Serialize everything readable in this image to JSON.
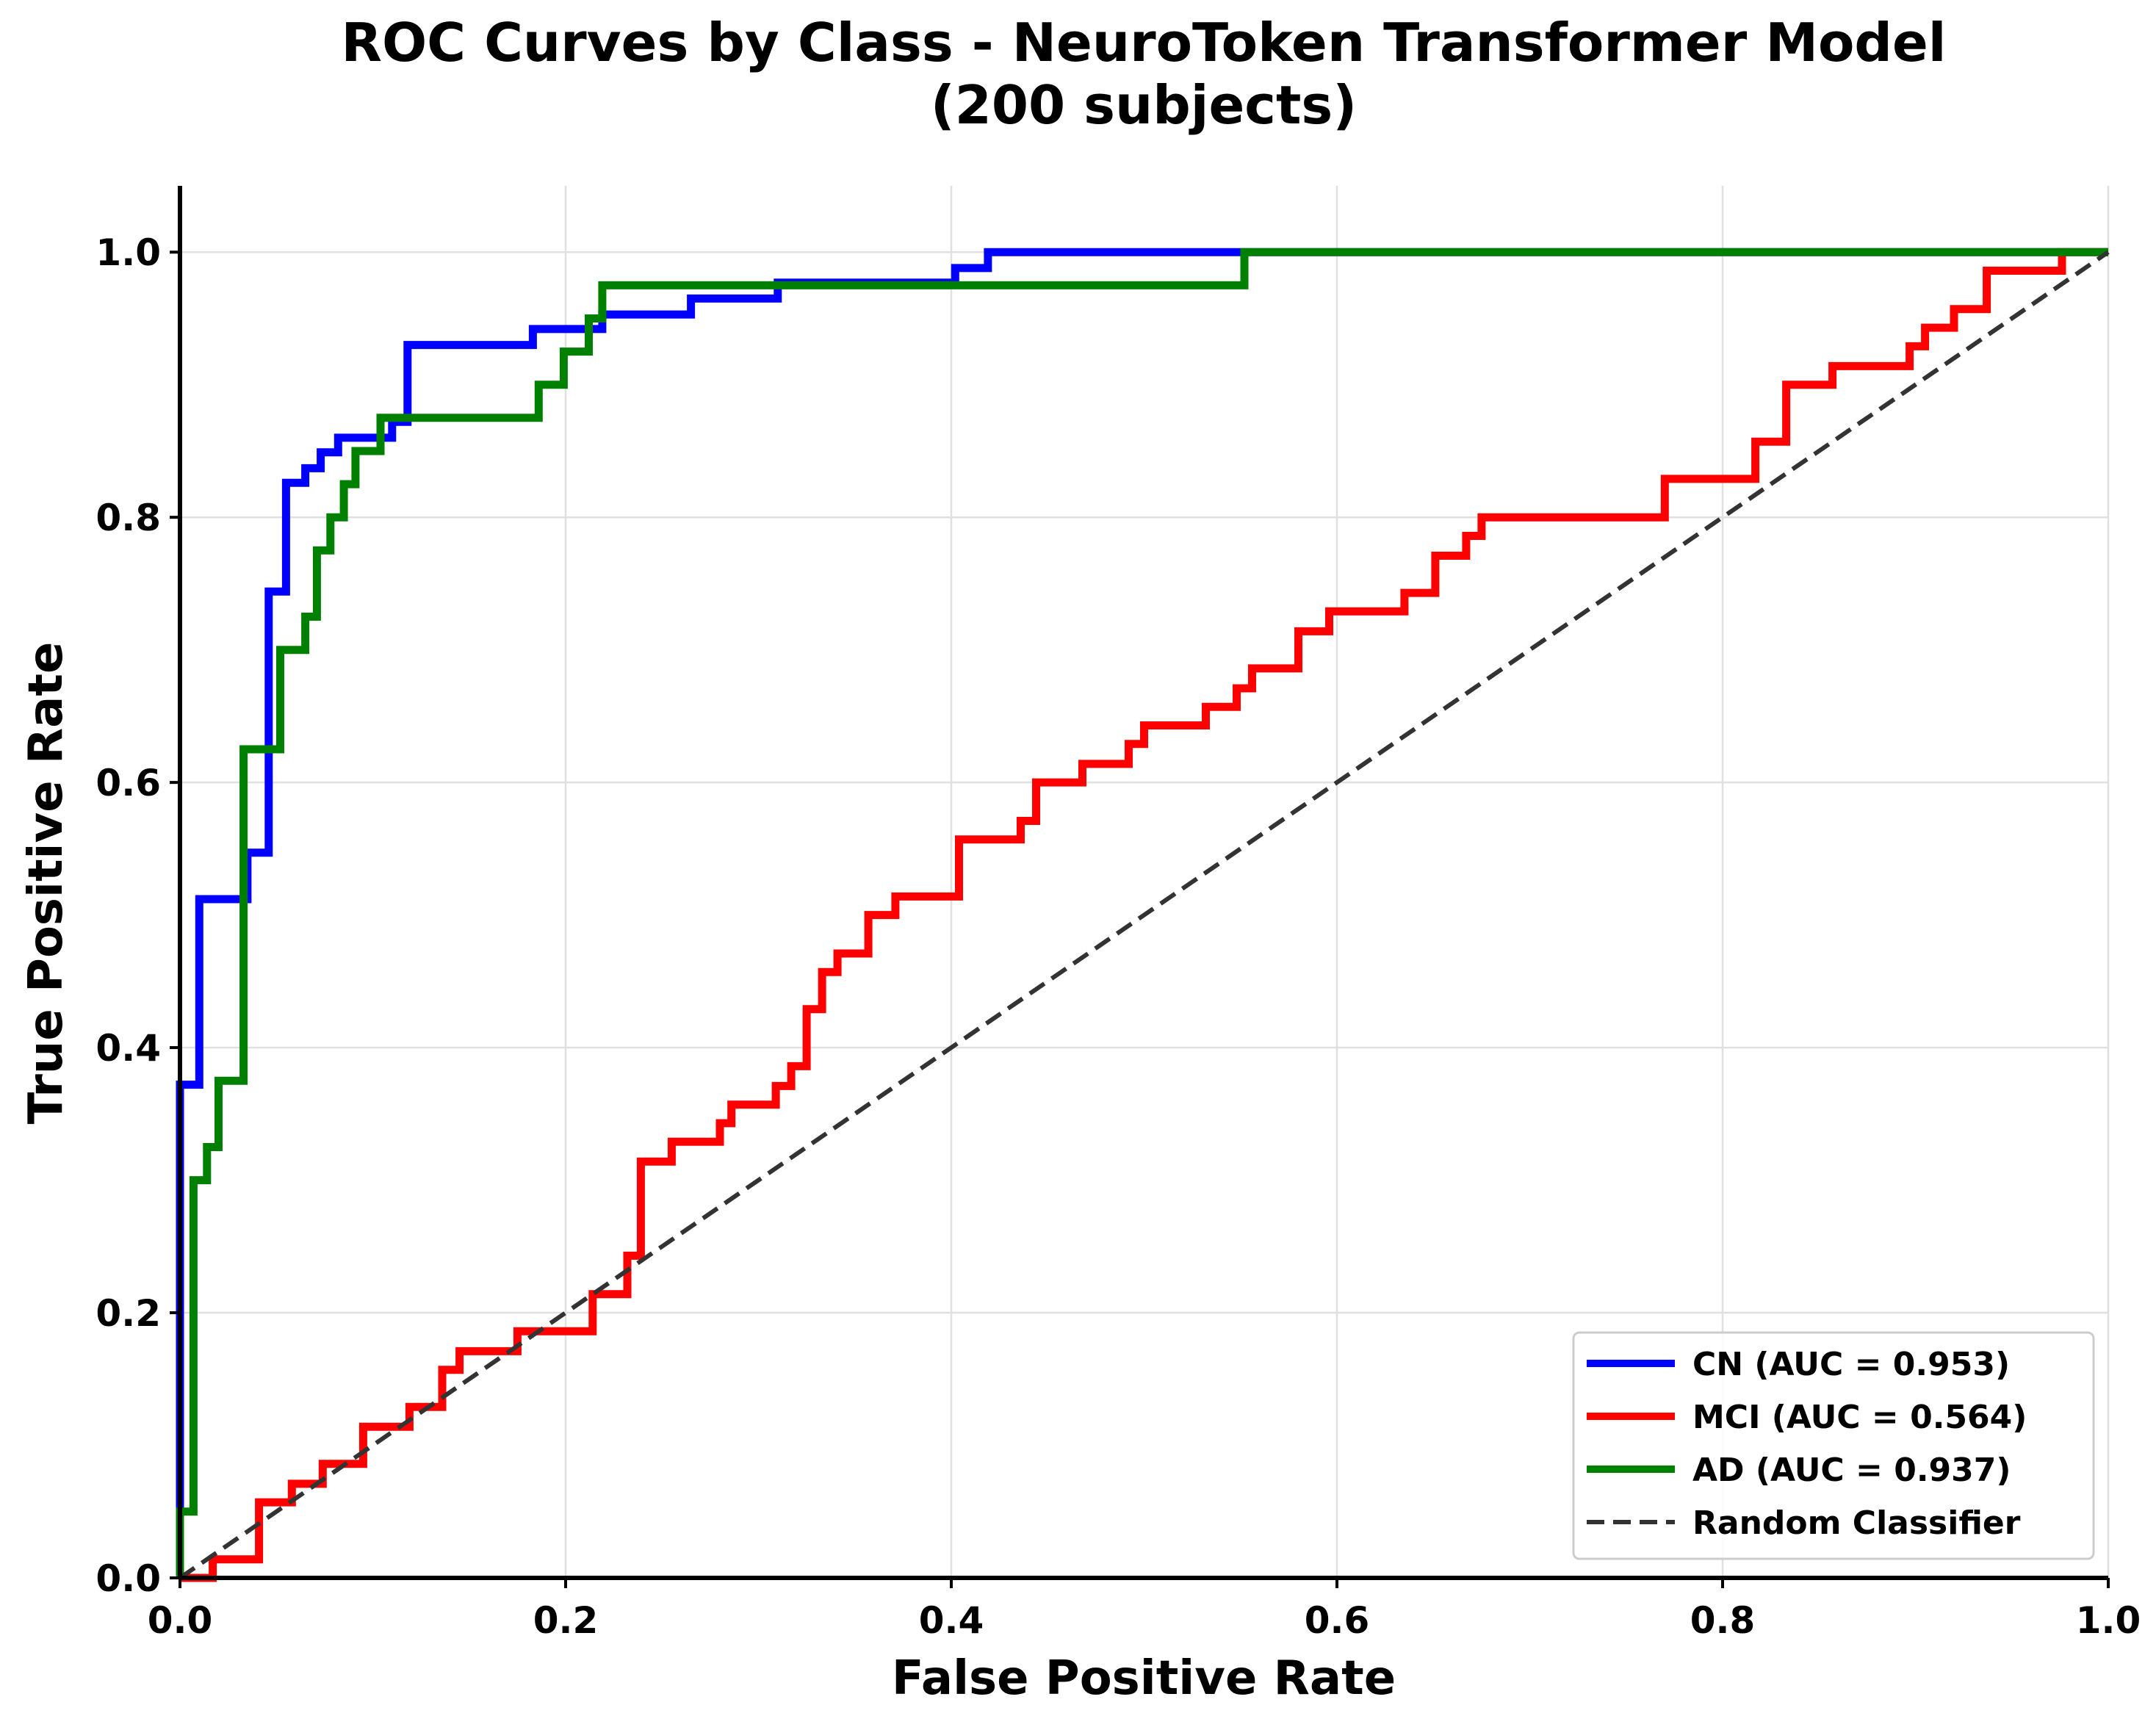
{
  "chart_data": {
    "type": "line",
    "title": [
      "ROC Curves by Class - NeuroToken Transformer Model",
      "(200 subjects)"
    ],
    "xlabel": "False Positive Rate",
    "ylabel": "True Positive Rate",
    "xlim": [
      0,
      1
    ],
    "ylim": [
      0,
      1.05
    ],
    "xticks": [
      "0.0",
      "0.2",
      "0.4",
      "0.6",
      "0.8",
      "1.0"
    ],
    "yticks": [
      "0.0",
      "0.2",
      "0.4",
      "0.6",
      "0.8",
      "1.0"
    ],
    "grid": true,
    "legend_position": "lower-right",
    "series": [
      {
        "name": "CN (AUC = 0.953)",
        "color": "#0000ff",
        "style": "solid",
        "points": [
          [
            0,
            0
          ],
          [
            0,
            0.372
          ],
          [
            0.01,
            0.372
          ],
          [
            0.01,
            0.512
          ],
          [
            0.035,
            0.512
          ],
          [
            0.035,
            0.547
          ],
          [
            0.046,
            0.547
          ],
          [
            0.046,
            0.744
          ],
          [
            0.055,
            0.744
          ],
          [
            0.055,
            0.826
          ],
          [
            0.065,
            0.826
          ],
          [
            0.065,
            0.837
          ],
          [
            0.073,
            0.837
          ],
          [
            0.073,
            0.849
          ],
          [
            0.082,
            0.849
          ],
          [
            0.082,
            0.86
          ],
          [
            0.11,
            0.86
          ],
          [
            0.11,
            0.872
          ],
          [
            0.118,
            0.872
          ],
          [
            0.118,
            0.93
          ],
          [
            0.183,
            0.93
          ],
          [
            0.183,
            0.942
          ],
          [
            0.219,
            0.942
          ],
          [
            0.219,
            0.953
          ],
          [
            0.265,
            0.953
          ],
          [
            0.265,
            0.965
          ],
          [
            0.31,
            0.965
          ],
          [
            0.31,
            0.977
          ],
          [
            0.402,
            0.977
          ],
          [
            0.402,
            0.988
          ],
          [
            0.419,
            0.988
          ],
          [
            0.419,
            1.0
          ],
          [
            1.0,
            1.0
          ]
        ]
      },
      {
        "name": "MCI (AUC = 0.564)",
        "color": "#ff0000",
        "style": "solid",
        "points": [
          [
            0,
            0
          ],
          [
            0.017,
            0
          ],
          [
            0.017,
            0.014
          ],
          [
            0.041,
            0.014
          ],
          [
            0.041,
            0.057
          ],
          [
            0.058,
            0.057
          ],
          [
            0.058,
            0.071
          ],
          [
            0.074,
            0.071
          ],
          [
            0.074,
            0.086
          ],
          [
            0.095,
            0.086
          ],
          [
            0.095,
            0.114
          ],
          [
            0.119,
            0.114
          ],
          [
            0.119,
            0.129
          ],
          [
            0.136,
            0.129
          ],
          [
            0.136,
            0.157
          ],
          [
            0.145,
            0.157
          ],
          [
            0.145,
            0.171
          ],
          [
            0.175,
            0.171
          ],
          [
            0.175,
            0.186
          ],
          [
            0.214,
            0.186
          ],
          [
            0.214,
            0.214
          ],
          [
            0.232,
            0.214
          ],
          [
            0.232,
            0.243
          ],
          [
            0.239,
            0.243
          ],
          [
            0.239,
            0.314
          ],
          [
            0.255,
            0.314
          ],
          [
            0.255,
            0.329
          ],
          [
            0.28,
            0.329
          ],
          [
            0.28,
            0.343
          ],
          [
            0.286,
            0.343
          ],
          [
            0.286,
            0.357
          ],
          [
            0.309,
            0.357
          ],
          [
            0.309,
            0.371
          ],
          [
            0.317,
            0.371
          ],
          [
            0.317,
            0.386
          ],
          [
            0.325,
            0.386
          ],
          [
            0.325,
            0.429
          ],
          [
            0.333,
            0.429
          ],
          [
            0.333,
            0.457
          ],
          [
            0.341,
            0.457
          ],
          [
            0.341,
            0.471
          ],
          [
            0.357,
            0.471
          ],
          [
            0.357,
            0.5
          ],
          [
            0.371,
            0.5
          ],
          [
            0.371,
            0.514
          ],
          [
            0.404,
            0.514
          ],
          [
            0.404,
            0.557
          ],
          [
            0.436,
            0.557
          ],
          [
            0.436,
            0.571
          ],
          [
            0.444,
            0.571
          ],
          [
            0.444,
            0.6
          ],
          [
            0.468,
            0.6
          ],
          [
            0.468,
            0.614
          ],
          [
            0.492,
            0.614
          ],
          [
            0.492,
            0.629
          ],
          [
            0.5,
            0.629
          ],
          [
            0.5,
            0.643
          ],
          [
            0.532,
            0.643
          ],
          [
            0.532,
            0.657
          ],
          [
            0.548,
            0.657
          ],
          [
            0.548,
            0.671
          ],
          [
            0.556,
            0.671
          ],
          [
            0.556,
            0.686
          ],
          [
            0.58,
            0.686
          ],
          [
            0.58,
            0.714
          ],
          [
            0.596,
            0.714
          ],
          [
            0.596,
            0.729
          ],
          [
            0.635,
            0.729
          ],
          [
            0.635,
            0.743
          ],
          [
            0.651,
            0.743
          ],
          [
            0.651,
            0.771
          ],
          [
            0.667,
            0.771
          ],
          [
            0.667,
            0.786
          ],
          [
            0.675,
            0.786
          ],
          [
            0.675,
            0.8
          ],
          [
            0.77,
            0.8
          ],
          [
            0.77,
            0.829
          ],
          [
            0.817,
            0.829
          ],
          [
            0.817,
            0.857
          ],
          [
            0.833,
            0.857
          ],
          [
            0.833,
            0.9
          ],
          [
            0.857,
            0.9
          ],
          [
            0.857,
            0.914
          ],
          [
            0.897,
            0.914
          ],
          [
            0.897,
            0.929
          ],
          [
            0.905,
            0.929
          ],
          [
            0.905,
            0.943
          ],
          [
            0.92,
            0.943
          ],
          [
            0.92,
            0.957
          ],
          [
            0.937,
            0.957
          ],
          [
            0.937,
            0.986
          ],
          [
            0.976,
            0.986
          ],
          [
            0.976,
            1.0
          ],
          [
            1.0,
            1.0
          ]
        ]
      },
      {
        "name": "AD (AUC = 0.937)",
        "color": "#008000",
        "style": "solid",
        "points": [
          [
            0,
            0
          ],
          [
            0,
            0.05
          ],
          [
            0.007,
            0.05
          ],
          [
            0.007,
            0.3
          ],
          [
            0.014,
            0.3
          ],
          [
            0.014,
            0.325
          ],
          [
            0.02,
            0.325
          ],
          [
            0.02,
            0.375
          ],
          [
            0.033,
            0.375
          ],
          [
            0.033,
            0.625
          ],
          [
            0.052,
            0.625
          ],
          [
            0.052,
            0.7
          ],
          [
            0.065,
            0.7
          ],
          [
            0.065,
            0.725
          ],
          [
            0.071,
            0.725
          ],
          [
            0.071,
            0.775
          ],
          [
            0.078,
            0.775
          ],
          [
            0.078,
            0.8
          ],
          [
            0.085,
            0.8
          ],
          [
            0.085,
            0.825
          ],
          [
            0.091,
            0.825
          ],
          [
            0.091,
            0.85
          ],
          [
            0.104,
            0.85
          ],
          [
            0.104,
            0.875
          ],
          [
            0.186,
            0.875
          ],
          [
            0.186,
            0.9
          ],
          [
            0.199,
            0.9
          ],
          [
            0.199,
            0.925
          ],
          [
            0.212,
            0.925
          ],
          [
            0.212,
            0.95
          ],
          [
            0.219,
            0.95
          ],
          [
            0.219,
            0.975
          ],
          [
            0.552,
            0.975
          ],
          [
            0.552,
            1.0
          ],
          [
            1.0,
            1.0
          ]
        ]
      },
      {
        "name": "Random Classifier",
        "color": "#333333",
        "style": "dashed",
        "points": [
          [
            0,
            0
          ],
          [
            1,
            1
          ]
        ]
      }
    ]
  }
}
